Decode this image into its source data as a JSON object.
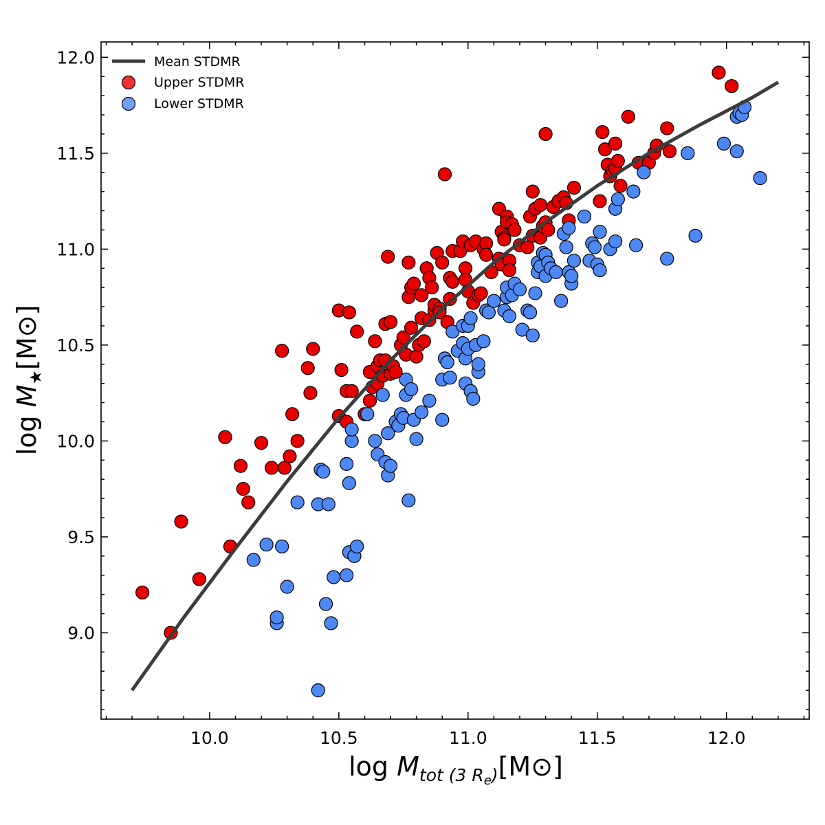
{
  "chart_data": {
    "type": "scatter",
    "title": "",
    "xlabel": {
      "prefix": "log ",
      "var": "M",
      "sub": "tot (3 R",
      "sub2": "e",
      "sub3": ")",
      "unit": "[M⊙]"
    },
    "ylabel": {
      "prefix": "log ",
      "var": "M",
      "sub": "★",
      "unit": "[M⊙]"
    },
    "xlim": [
      9.58,
      12.32
    ],
    "ylim": [
      8.55,
      12.08
    ],
    "xticks": [
      "10.0",
      "10.5",
      "11.0",
      "11.5",
      "12.0"
    ],
    "yticks": [
      "9.0",
      "9.5",
      "10.0",
      "10.5",
      "11.0",
      "11.5",
      "12.0"
    ],
    "legend": {
      "position": "top-left",
      "entries": [
        "Mean STDMR",
        "Upper STDMR",
        "Lower STDMR"
      ]
    },
    "colors": {
      "upper": "#e60000",
      "lower": "#4d88f5",
      "line": "#3c3c3c"
    },
    "mean_line": {
      "name": "Mean STDMR",
      "x": [
        9.7,
        9.9,
        10.1,
        10.3,
        10.5,
        10.7,
        10.9,
        11.1,
        11.3,
        11.5,
        11.7,
        11.9,
        12.1,
        12.2
      ],
      "y": [
        8.7,
        9.08,
        9.44,
        9.79,
        10.12,
        10.42,
        10.69,
        10.93,
        11.14,
        11.33,
        11.5,
        11.65,
        11.79,
        11.87
      ]
    },
    "series": [
      {
        "name": "Upper STDMR",
        "points": [
          [
            9.74,
            9.21
          ],
          [
            9.85,
            9.0
          ],
          [
            9.89,
            9.58
          ],
          [
            9.96,
            9.28
          ],
          [
            10.06,
            10.02
          ],
          [
            10.08,
            9.45
          ],
          [
            10.12,
            9.87
          ],
          [
            10.13,
            9.75
          ],
          [
            10.15,
            9.68
          ],
          [
            10.2,
            9.99
          ],
          [
            10.24,
            9.86
          ],
          [
            10.28,
            10.47
          ],
          [
            10.29,
            9.86
          ],
          [
            10.31,
            9.92
          ],
          [
            10.32,
            10.14
          ],
          [
            10.34,
            10.0
          ],
          [
            10.38,
            10.38
          ],
          [
            10.39,
            10.25
          ],
          [
            10.4,
            10.48
          ],
          [
            10.5,
            10.13
          ],
          [
            10.5,
            10.68
          ],
          [
            10.51,
            10.37
          ],
          [
            10.53,
            10.26
          ],
          [
            10.53,
            10.1
          ],
          [
            10.54,
            10.67
          ],
          [
            10.55,
            10.26
          ],
          [
            10.57,
            10.57
          ],
          [
            10.6,
            10.14
          ],
          [
            10.62,
            10.21
          ],
          [
            10.62,
            10.36
          ],
          [
            10.63,
            10.28
          ],
          [
            10.64,
            10.52
          ],
          [
            10.65,
            10.3
          ],
          [
            10.65,
            10.39
          ],
          [
            10.66,
            10.42
          ],
          [
            10.67,
            10.34
          ],
          [
            10.68,
            10.61
          ],
          [
            10.68,
            10.42
          ],
          [
            10.69,
            10.96
          ],
          [
            10.7,
            10.62
          ],
          [
            10.7,
            10.35
          ],
          [
            10.71,
            10.39
          ],
          [
            10.72,
            10.36
          ],
          [
            10.74,
            10.5
          ],
          [
            10.75,
            10.54
          ],
          [
            10.76,
            10.45
          ],
          [
            10.77,
            10.75
          ],
          [
            10.77,
            10.93
          ],
          [
            10.78,
            10.59
          ],
          [
            10.78,
            10.8
          ],
          [
            10.79,
            10.82
          ],
          [
            10.8,
            10.44
          ],
          [
            10.81,
            10.5
          ],
          [
            10.82,
            10.76
          ],
          [
            10.82,
            10.64
          ],
          [
            10.83,
            10.52
          ],
          [
            10.84,
            10.9
          ],
          [
            10.85,
            10.85
          ],
          [
            10.85,
            10.63
          ],
          [
            10.86,
            10.8
          ],
          [
            10.87,
            10.68
          ],
          [
            10.87,
            10.71
          ],
          [
            10.88,
            10.98
          ],
          [
            10.89,
            10.69
          ],
          [
            10.89,
            10.67
          ],
          [
            10.9,
            10.93
          ],
          [
            10.91,
            11.39
          ],
          [
            10.92,
            10.62
          ],
          [
            10.93,
            10.74
          ],
          [
            10.93,
            10.85
          ],
          [
            10.94,
            10.83
          ],
          [
            10.94,
            10.99
          ],
          [
            10.97,
            10.99
          ],
          [
            10.98,
            11.04
          ],
          [
            10.99,
            10.9
          ],
          [
            10.99,
            10.84
          ],
          [
            11.0,
            10.78
          ],
          [
            11.01,
            11.02
          ],
          [
            11.02,
            10.72
          ],
          [
            11.03,
            11.04
          ],
          [
            11.04,
            10.76
          ],
          [
            11.05,
            10.77
          ],
          [
            11.06,
            11.0
          ],
          [
            11.07,
            11.03
          ],
          [
            11.07,
            10.97
          ],
          [
            11.09,
            10.88
          ],
          [
            11.12,
            11.21
          ],
          [
            11.12,
            10.95
          ],
          [
            11.13,
            10.92
          ],
          [
            11.13,
            11.09
          ],
          [
            11.14,
            11.06
          ],
          [
            11.14,
            11.05
          ],
          [
            11.15,
            11.17
          ],
          [
            11.15,
            11.14
          ],
          [
            11.16,
            10.94
          ],
          [
            11.16,
            10.89
          ],
          [
            11.17,
            11.13
          ],
          [
            11.18,
            11.1
          ],
          [
            11.2,
            11.02
          ],
          [
            11.23,
            11.01
          ],
          [
            11.24,
            11.17
          ],
          [
            11.25,
            11.3
          ],
          [
            11.25,
            11.07
          ],
          [
            11.26,
            11.21
          ],
          [
            11.28,
            11.06
          ],
          [
            11.28,
            11.23
          ],
          [
            11.29,
            11.12
          ],
          [
            11.3,
            11.6
          ],
          [
            11.3,
            11.14
          ],
          [
            11.31,
            11.1
          ],
          [
            11.33,
            11.22
          ],
          [
            11.35,
            11.25
          ],
          [
            11.37,
            11.27
          ],
          [
            11.38,
            11.24
          ],
          [
            11.39,
            11.15
          ],
          [
            11.41,
            11.32
          ],
          [
            11.51,
            11.25
          ],
          [
            11.52,
            11.61
          ],
          [
            11.53,
            11.52
          ],
          [
            11.54,
            11.44
          ],
          [
            11.55,
            11.38
          ],
          [
            11.56,
            11.41
          ],
          [
            11.57,
            11.55
          ],
          [
            11.57,
            11.42
          ],
          [
            11.58,
            11.46
          ],
          [
            11.59,
            11.33
          ],
          [
            11.62,
            11.69
          ],
          [
            11.66,
            11.45
          ],
          [
            11.7,
            11.45
          ],
          [
            11.72,
            11.5
          ],
          [
            11.73,
            11.54
          ],
          [
            11.77,
            11.63
          ],
          [
            11.78,
            11.51
          ],
          [
            11.97,
            11.92
          ],
          [
            12.02,
            11.85
          ]
        ]
      },
      {
        "name": "Lower STDMR",
        "points": [
          [
            10.17,
            9.38
          ],
          [
            10.22,
            9.46
          ],
          [
            10.26,
            9.05
          ],
          [
            10.26,
            9.08
          ],
          [
            10.28,
            9.45
          ],
          [
            10.3,
            9.24
          ],
          [
            10.34,
            9.68
          ],
          [
            10.42,
            9.67
          ],
          [
            10.42,
            8.7
          ],
          [
            10.43,
            9.85
          ],
          [
            10.44,
            9.84
          ],
          [
            10.45,
            9.15
          ],
          [
            10.46,
            9.67
          ],
          [
            10.47,
            9.05
          ],
          [
            10.48,
            9.29
          ],
          [
            10.53,
            9.88
          ],
          [
            10.53,
            9.3
          ],
          [
            10.54,
            9.78
          ],
          [
            10.54,
            9.42
          ],
          [
            10.55,
            10.0
          ],
          [
            10.55,
            10.06
          ],
          [
            10.56,
            9.4
          ],
          [
            10.57,
            9.45
          ],
          [
            10.61,
            10.14
          ],
          [
            10.64,
            10.0
          ],
          [
            10.65,
            9.93
          ],
          [
            10.67,
            10.24
          ],
          [
            10.68,
            9.89
          ],
          [
            10.69,
            9.82
          ],
          [
            10.69,
            10.04
          ],
          [
            10.7,
            9.87
          ],
          [
            10.72,
            10.1
          ],
          [
            10.73,
            10.08
          ],
          [
            10.74,
            10.14
          ],
          [
            10.75,
            10.12
          ],
          [
            10.76,
            10.24
          ],
          [
            10.76,
            10.32
          ],
          [
            10.77,
            9.69
          ],
          [
            10.78,
            10.27
          ],
          [
            10.79,
            10.11
          ],
          [
            10.8,
            10.01
          ],
          [
            10.82,
            10.15
          ],
          [
            10.85,
            10.21
          ],
          [
            10.9,
            10.11
          ],
          [
            10.9,
            10.32
          ],
          [
            10.91,
            10.43
          ],
          [
            10.92,
            10.41
          ],
          [
            10.93,
            10.33
          ],
          [
            10.94,
            10.57
          ],
          [
            10.96,
            10.47
          ],
          [
            10.98,
            10.51
          ],
          [
            10.98,
            10.6
          ],
          [
            10.99,
            10.43
          ],
          [
            10.99,
            10.3
          ],
          [
            11.0,
            10.48
          ],
          [
            11.0,
            10.6
          ],
          [
            11.01,
            10.26
          ],
          [
            11.01,
            10.64
          ],
          [
            11.02,
            10.22
          ],
          [
            11.03,
            10.5
          ],
          [
            11.04,
            10.36
          ],
          [
            11.04,
            10.4
          ],
          [
            11.06,
            10.52
          ],
          [
            11.07,
            10.68
          ],
          [
            11.08,
            10.67
          ],
          [
            11.1,
            10.73
          ],
          [
            11.14,
            10.68
          ],
          [
            11.15,
            10.75
          ],
          [
            11.15,
            10.8
          ],
          [
            11.16,
            10.65
          ],
          [
            11.17,
            10.76
          ],
          [
            11.18,
            10.82
          ],
          [
            11.2,
            10.79
          ],
          [
            11.21,
            10.58
          ],
          [
            11.23,
            10.68
          ],
          [
            11.24,
            10.67
          ],
          [
            11.25,
            10.55
          ],
          [
            11.26,
            10.77
          ],
          [
            11.27,
            10.93
          ],
          [
            11.27,
            10.88
          ],
          [
            11.28,
            10.91
          ],
          [
            11.29,
            10.98
          ],
          [
            11.3,
            10.97
          ],
          [
            11.3,
            10.86
          ],
          [
            11.31,
            10.93
          ],
          [
            11.32,
            10.9
          ],
          [
            11.34,
            10.88
          ],
          [
            11.36,
            10.73
          ],
          [
            11.37,
            11.08
          ],
          [
            11.38,
            11.01
          ],
          [
            11.39,
            11.11
          ],
          [
            11.39,
            10.88
          ],
          [
            11.4,
            10.82
          ],
          [
            11.4,
            10.86
          ],
          [
            11.41,
            10.94
          ],
          [
            11.45,
            11.17
          ],
          [
            11.47,
            10.94
          ],
          [
            11.48,
            11.03
          ],
          [
            11.49,
            11.01
          ],
          [
            11.5,
            10.92
          ],
          [
            11.51,
            10.89
          ],
          [
            11.51,
            11.09
          ],
          [
            11.55,
            11.0
          ],
          [
            11.57,
            11.04
          ],
          [
            11.57,
            11.21
          ],
          [
            11.58,
            11.26
          ],
          [
            11.65,
            11.02
          ],
          [
            11.64,
            11.3
          ],
          [
            11.68,
            11.4
          ],
          [
            11.77,
            10.95
          ],
          [
            11.85,
            11.5
          ],
          [
            11.88,
            11.07
          ],
          [
            11.99,
            11.55
          ],
          [
            12.04,
            11.69
          ],
          [
            12.04,
            11.51
          ],
          [
            12.05,
            11.71
          ],
          [
            12.06,
            11.7
          ],
          [
            12.07,
            11.74
          ],
          [
            12.13,
            11.37
          ]
        ]
      }
    ]
  }
}
